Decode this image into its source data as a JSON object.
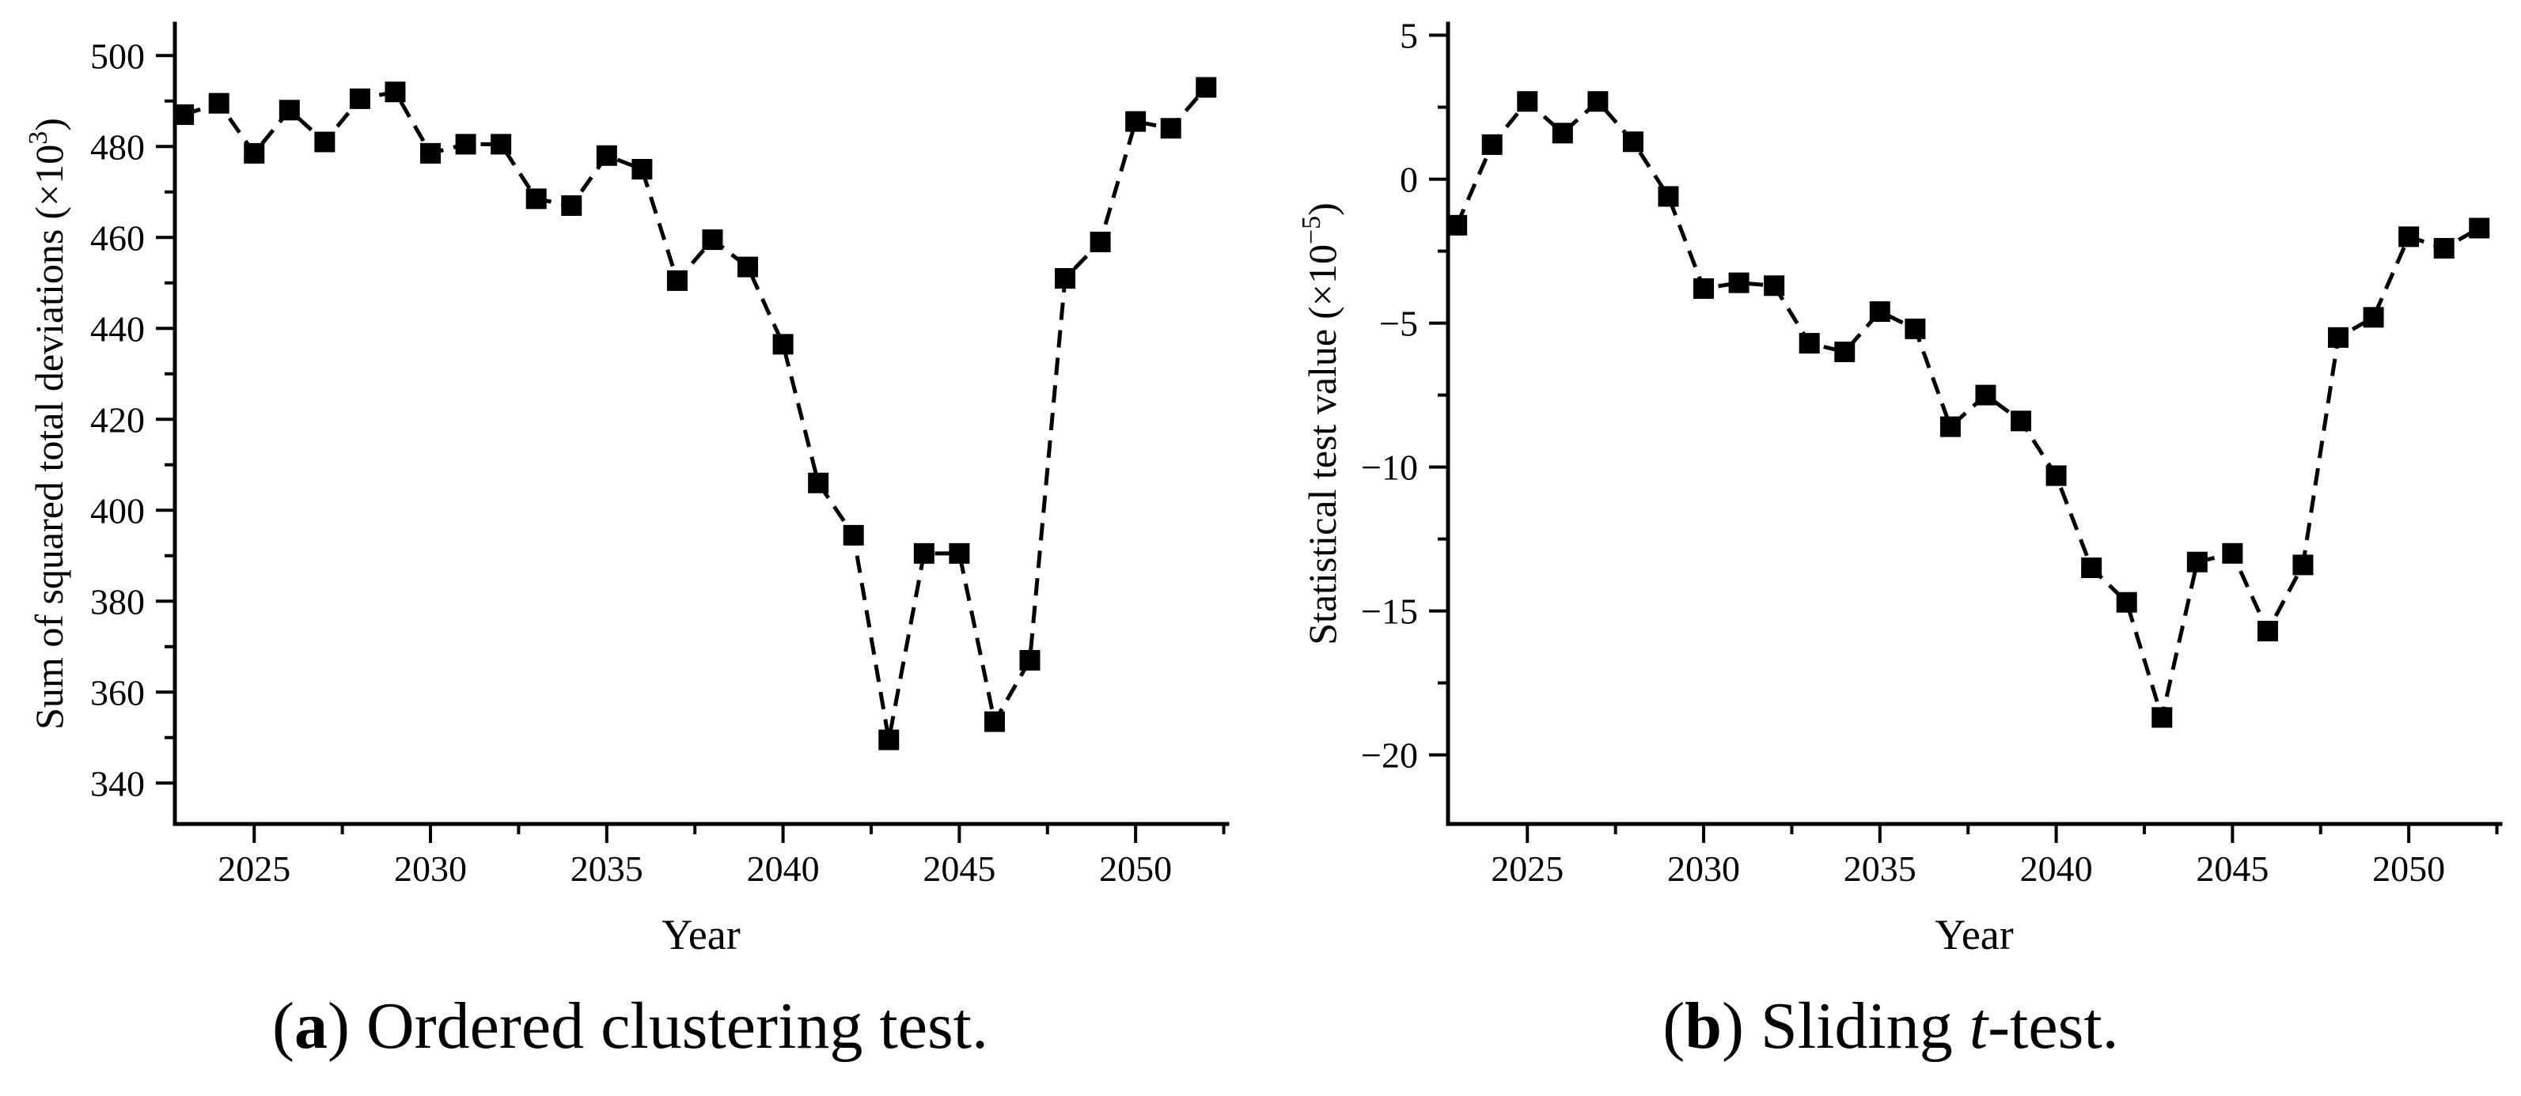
{
  "figure": {
    "description": "Two-panel statistical test figure",
    "accent_color": "#000000",
    "background_color": "#ffffff"
  },
  "captions": [
    {
      "open": "(",
      "label": "a",
      "close": ") ",
      "pre_italic": "Ordered clustering test.",
      "italic": "",
      "post_italic": ""
    },
    {
      "open": "(",
      "label": "b",
      "close": ") ",
      "pre_italic": "Sliding ",
      "italic": "t",
      "post_italic": "-test."
    }
  ],
  "chart_data": [
    {
      "type": "line",
      "panel": "a",
      "title": "",
      "xlabel": "Year",
      "ylabel": "Sum of squared total deviations (×10³)",
      "ylabel_base": "Sum of squared total deviations",
      "ylabel_unit_open": "(×10",
      "ylabel_exponent": "3",
      "ylabel_unit_close": ")",
      "legend": "none",
      "grid": false,
      "marker": "filled-square",
      "line_style": "dashed",
      "color": "#000000",
      "x": [
        2023,
        2024,
        2025,
        2026,
        2027,
        2028,
        2029,
        2030,
        2031,
        2032,
        2033,
        2034,
        2035,
        2036,
        2037,
        2038,
        2039,
        2040,
        2041,
        2042,
        2043,
        2044,
        2045,
        2046,
        2047,
        2048,
        2049,
        2050,
        2051,
        2052
      ],
      "values": [
        487,
        489.5,
        478.5,
        488,
        481,
        490.5,
        492,
        478.5,
        480.5,
        480.5,
        468.5,
        467,
        478,
        475,
        450.5,
        459.5,
        453.5,
        436.5,
        406,
        394.5,
        349.5,
        390.5,
        390.5,
        353.5,
        367,
        451,
        459,
        485.5,
        484,
        493
      ],
      "xlim": [
        2022.75,
        2052.6
      ],
      "ylim": [
        331,
        507
      ],
      "xticks": [
        2025,
        2030,
        2035,
        2040,
        2045,
        2050
      ],
      "yticks": [
        340,
        360,
        380,
        400,
        420,
        440,
        460,
        480,
        500
      ],
      "xtick_minor_step": 2.5,
      "ytick_minor_step": 10
    },
    {
      "type": "line",
      "panel": "b",
      "title": "",
      "xlabel": "Year",
      "ylabel": "Statistical test value (×10⁻⁵)",
      "ylabel_base": "Statistical test value",
      "ylabel_unit_open": "(×10",
      "ylabel_exponent": "−5",
      "ylabel_unit_close": ")",
      "legend": "none",
      "grid": false,
      "marker": "filled-square",
      "line_style": "dashed",
      "color": "#000000",
      "x": [
        2023,
        2024,
        2025,
        2026,
        2027,
        2028,
        2029,
        2030,
        2031,
        2032,
        2033,
        2034,
        2035,
        2036,
        2037,
        2038,
        2039,
        2040,
        2041,
        2042,
        2043,
        2044,
        2045,
        2046,
        2047,
        2048,
        2049,
        2050,
        2051,
        2052
      ],
      "values": [
        -1.6,
        1.2,
        2.7,
        1.6,
        2.7,
        1.3,
        -0.6,
        -3.8,
        -3.6,
        -3.7,
        -5.7,
        -6.0,
        -4.6,
        -5.2,
        -8.6,
        -7.5,
        -8.4,
        -10.3,
        -13.5,
        -14.7,
        -18.7,
        -13.3,
        -13.0,
        -15.7,
        -13.4,
        -5.5,
        -4.8,
        -2.0,
        -2.4,
        -1.7
      ],
      "xlim": [
        2022.75,
        2052.6
      ],
      "ylim": [
        -22.4,
        5.4
      ],
      "xticks": [
        2025,
        2030,
        2035,
        2040,
        2045,
        2050
      ],
      "yticks": [
        -20,
        -15,
        -10,
        -5,
        0,
        5
      ],
      "xtick_minor_step": 2.5,
      "ytick_minor_step": 2.5
    }
  ]
}
